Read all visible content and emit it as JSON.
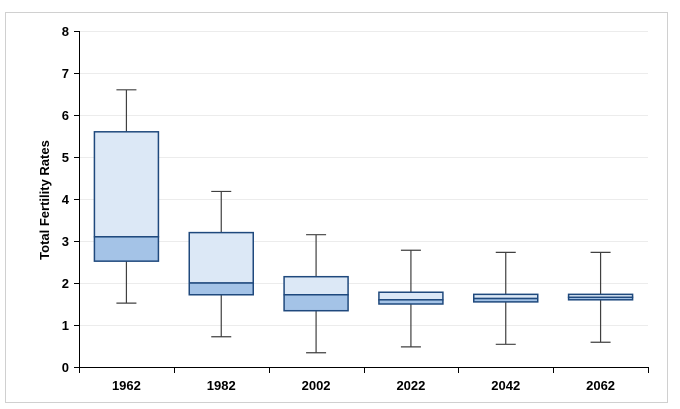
{
  "chart_data": {
    "type": "boxplot",
    "title": "",
    "xlabel": "",
    "ylabel": "Total Fertility Rates",
    "ylim": [
      0,
      8
    ],
    "yticks": [
      0,
      1,
      2,
      3,
      4,
      5,
      6,
      7,
      8
    ],
    "grid": "horizontal",
    "categories": [
      "1962",
      "1982",
      "2002",
      "2022",
      "2042",
      "2062"
    ],
    "boxes": [
      {
        "category": "1962",
        "min": 1.52,
        "q1": 2.52,
        "median": 3.1,
        "q3": 5.6,
        "max": 6.6
      },
      {
        "category": "1982",
        "min": 0.72,
        "q1": 1.72,
        "median": 2.0,
        "q3": 3.2,
        "max": 4.18
      },
      {
        "category": "2002",
        "min": 0.34,
        "q1": 1.34,
        "median": 1.72,
        "q3": 2.15,
        "max": 3.15
      },
      {
        "category": "2022",
        "min": 0.48,
        "q1": 1.5,
        "median": 1.6,
        "q3": 1.78,
        "max": 2.78
      },
      {
        "category": "2042",
        "min": 0.54,
        "q1": 1.55,
        "median": 1.63,
        "q3": 1.73,
        "max": 2.73
      },
      {
        "category": "2062",
        "min": 0.59,
        "q1": 1.6,
        "median": 1.66,
        "q3": 1.73,
        "max": 2.73
      }
    ],
    "colors": {
      "box_upper": "#dce8f6",
      "box_lower": "#a4c3e7",
      "box_edge": "#1f497d",
      "whisker": "#404040",
      "grid": "#ececec",
      "axis": "#000000",
      "frame": "#d0d0d0"
    }
  }
}
